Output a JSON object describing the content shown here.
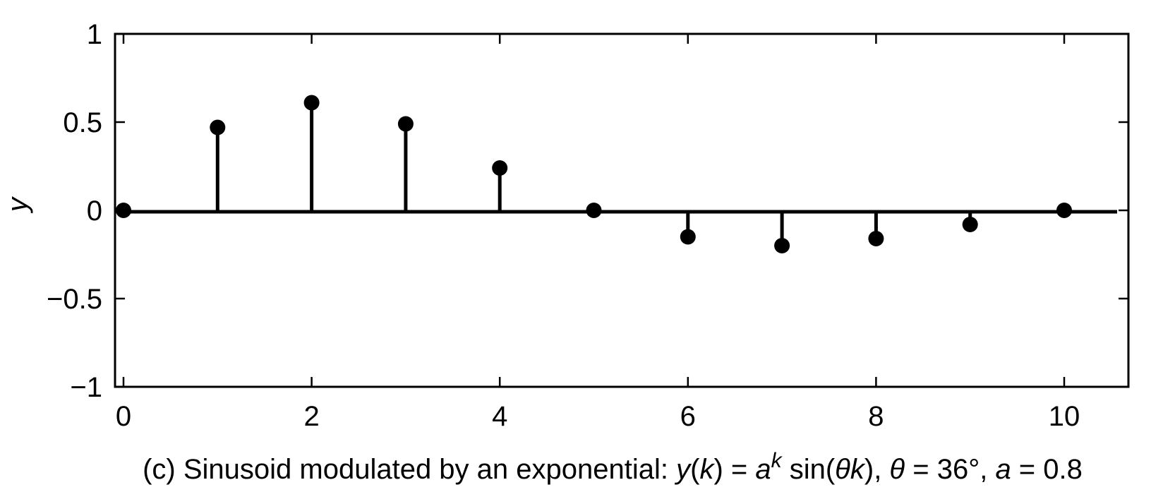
{
  "chart_data": {
    "type": "stem",
    "x": [
      0,
      1,
      2,
      3,
      4,
      5,
      6,
      7,
      8,
      9,
      10
    ],
    "y": [
      0,
      0.47,
      0.61,
      0.49,
      0.24,
      0,
      -0.15,
      -0.2,
      -0.16,
      -0.08,
      0
    ],
    "xlim": [
      0,
      10
    ],
    "ylim": [
      -1,
      1
    ],
    "xticks": [
      0,
      2,
      4,
      6,
      8,
      10
    ],
    "xtick_labels": [
      "0",
      "2",
      "4",
      "6",
      "8",
      "10"
    ],
    "yticks": [
      -1,
      -0.5,
      0,
      0.5,
      1
    ],
    "ytick_labels": [
      "−1",
      "−0.5",
      "0",
      "0.5",
      "1"
    ],
    "ylabel": "y",
    "caption": {
      "prefix": "(c) Sinusoid modulated by an exponential: ",
      "y": "y",
      "open1": "(",
      "k1": "k",
      "close1": ") = ",
      "a1": "a",
      "sup_k": "k",
      "sin_open": " sin(",
      "theta1": "θ",
      "k2": "k",
      "sin_close": "), ",
      "theta2": "θ",
      "theta_eq": " = 36°, ",
      "a2": "a",
      "a_eq": " = 0.8"
    },
    "grid": false,
    "color": "#000000"
  }
}
